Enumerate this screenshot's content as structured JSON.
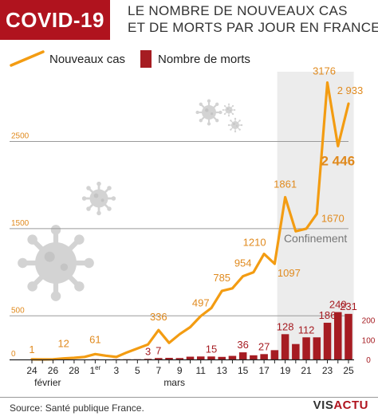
{
  "header": {
    "badge": "COVID-19",
    "title_line1": "LE NOMBRE DE NOUVEAUX CAS",
    "title_line2": "ET DE MORTS PAR JOUR EN FRANCE"
  },
  "footer": {
    "source": "Source: Santé publique France.",
    "brand_part1": "VIS",
    "brand_part2": "ACTU"
  },
  "colors": {
    "cases_line": "#f39c12",
    "deaths_bar": "#a61c22",
    "cases_label": "#e08a1e",
    "deaths_label": "#a61c22",
    "confinement_bg": "#ececec",
    "badge_bg": "#b0131e"
  },
  "chart_data": {
    "type": "bar+line",
    "x": [
      24,
      25,
      26,
      27,
      28,
      29,
      1,
      2,
      3,
      4,
      5,
      6,
      7,
      8,
      9,
      10,
      11,
      12,
      13,
      14,
      15,
      16,
      17,
      18,
      19,
      20,
      21,
      22,
      23,
      24,
      25
    ],
    "month_labels": [
      "février",
      "mars"
    ],
    "x_tick_labels": [
      "24",
      "26",
      "28",
      "1",
      "3",
      "5",
      "7",
      "9",
      "11",
      "13",
      "15",
      "17",
      "19",
      "21",
      "23",
      "25"
    ],
    "first_of_month_suffix": "er",
    "series": [
      {
        "name": "Nouveaux cas",
        "kind": "line",
        "axis": "left",
        "values": [
          1,
          0,
          2,
          12,
          18,
          29,
          61,
          43,
          28,
          80,
          125,
          172,
          336,
          190,
          290,
          370,
          497,
          590,
          785,
          815,
          954,
          1000,
          1210,
          1097,
          1861,
          1470,
          1500,
          1670,
          3176,
          2446,
          2933
        ]
      },
      {
        "name": "Nombre de morts",
        "kind": "bar",
        "axis": "right",
        "values": [
          0,
          0,
          0,
          0,
          0,
          0,
          1,
          0,
          1,
          1,
          1,
          3,
          7,
          8,
          7,
          14,
          15,
          15,
          13,
          18,
          36,
          21,
          27,
          47,
          128,
          78,
          112,
          112,
          186,
          240,
          231
        ]
      }
    ],
    "case_labels": [
      {
        "index": 0,
        "text": "1"
      },
      {
        "index": 3,
        "text": "12"
      },
      {
        "index": 6,
        "text": "61"
      },
      {
        "index": 12,
        "text": "336"
      },
      {
        "index": 16,
        "text": "497"
      },
      {
        "index": 18,
        "text": "785"
      },
      {
        "index": 20,
        "text": "954"
      },
      {
        "index": 22,
        "text": "1210"
      },
      {
        "index": 23,
        "text": "1097"
      },
      {
        "index": 24,
        "text": "1861"
      },
      {
        "index": 27,
        "text": "1670"
      },
      {
        "index": 28,
        "text": "3176"
      },
      {
        "index": 29,
        "text": "2 446"
      },
      {
        "index": 30,
        "text": "2 933"
      }
    ],
    "death_labels": [
      {
        "index": 11,
        "text": "3"
      },
      {
        "index": 12,
        "text": "7"
      },
      {
        "index": 17,
        "text": "15"
      },
      {
        "index": 20,
        "text": "36"
      },
      {
        "index": 22,
        "text": "27"
      },
      {
        "index": 24,
        "text": "128"
      },
      {
        "index": 26,
        "text": "112"
      },
      {
        "index": 28,
        "text": "186"
      },
      {
        "index": 29,
        "text": "240"
      },
      {
        "index": 30,
        "text": "231"
      }
    ],
    "left_axis": {
      "ticks": [
        0,
        500,
        1500,
        2500
      ],
      "ylim": [
        0,
        3300
      ]
    },
    "right_axis": {
      "ticks": [
        0,
        100,
        200
      ],
      "ylim": [
        0,
        400
      ]
    },
    "annotation": {
      "text": "Confinement",
      "start_index": 23,
      "end_index": 30
    },
    "legend_position": "top-left"
  }
}
